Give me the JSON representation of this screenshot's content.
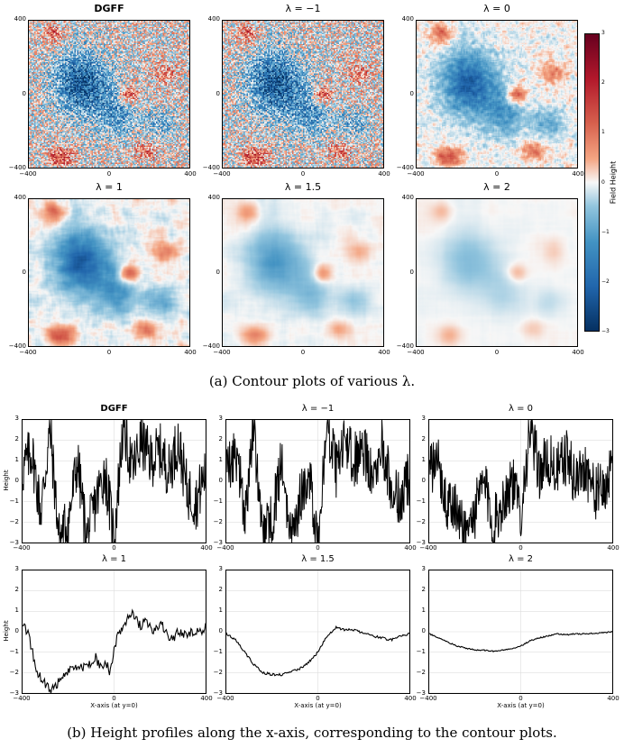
{
  "figure": {
    "caption_a": "(a) Contour plots of various λ.",
    "caption_b": "(b) Height profiles along the x-axis, corresponding to the contour plots.",
    "colorbar": {
      "label": "Field Height",
      "ticks": [
        "3",
        "2",
        "1",
        "0",
        "−1",
        "−2",
        "−3"
      ]
    },
    "panel_titles": [
      "DGFF",
      "λ = −1",
      "λ = 0",
      "λ = 1",
      "λ = 1.5",
      "λ = 2"
    ],
    "heatmap_ticks": {
      "y": [
        "400",
        "0",
        "−400"
      ],
      "x": [
        "−400",
        "0",
        "400"
      ]
    },
    "profile_ticks": {
      "y": [
        "3",
        "2",
        "1",
        "0",
        "−1",
        "−2",
        "−3"
      ],
      "x": [
        "−400",
        "0",
        "400"
      ]
    },
    "profile_ylabel": "Height",
    "profile_xlabel": "X-axis (at y=0)"
  },
  "chart_data": [
    {
      "type": "heatmap",
      "title": "DGFF",
      "xlim": [
        -400,
        400
      ],
      "ylim": [
        -400,
        400
      ],
      "colormap": "RdBu_r",
      "vmin": -3,
      "vmax": 3,
      "smoothing": 0
    },
    {
      "type": "heatmap",
      "title": "λ = −1",
      "xlim": [
        -400,
        400
      ],
      "ylim": [
        -400,
        400
      ],
      "colormap": "RdBu_r",
      "vmin": -3,
      "vmax": 3,
      "smoothing": 0
    },
    {
      "type": "heatmap",
      "title": "λ = 0",
      "xlim": [
        -400,
        400
      ],
      "ylim": [
        -400,
        400
      ],
      "colormap": "RdBu_r",
      "vmin": -3,
      "vmax": 3,
      "smoothing": 0.5
    },
    {
      "type": "heatmap",
      "title": "λ = 1",
      "xlim": [
        -400,
        400
      ],
      "ylim": [
        -400,
        400
      ],
      "colormap": "RdBu_r",
      "vmin": -3,
      "vmax": 3,
      "smoothing": 3
    },
    {
      "type": "heatmap",
      "title": "λ = 1.5",
      "xlim": [
        -400,
        400
      ],
      "ylim": [
        -400,
        400
      ],
      "colormap": "RdBu_r",
      "vmin": -3,
      "vmax": 3,
      "smoothing": 7,
      "amplitude": 0.55
    },
    {
      "type": "heatmap",
      "title": "λ = 2",
      "xlim": [
        -400,
        400
      ],
      "ylim": [
        -400,
        400
      ],
      "colormap": "RdBu_r",
      "vmin": -3,
      "vmax": 3,
      "smoothing": 12,
      "amplitude": 0.3
    },
    {
      "type": "line",
      "title": "DGFF",
      "ylabel": "Height",
      "xlim": [
        -400,
        400
      ],
      "ylim": [
        -3,
        3
      ],
      "grid": true,
      "x": [
        -400,
        -360,
        -320,
        -280,
        -240,
        -200,
        -160,
        -120,
        -80,
        -40,
        0,
        40,
        80,
        120,
        160,
        200,
        240,
        280,
        320,
        360,
        400
      ],
      "y": [
        0.5,
        1.5,
        -1.5,
        2.5,
        -2.8,
        -2,
        1,
        -2.8,
        -1,
        0.5,
        -2.8,
        2.8,
        0.5,
        2,
        1,
        1.5,
        0.5,
        2,
        -0.5,
        -1,
        0.5
      ]
    },
    {
      "type": "line",
      "title": "λ = −1",
      "xlim": [
        -400,
        400
      ],
      "ylim": [
        -3,
        3
      ],
      "grid": true,
      "x": [
        -400,
        -360,
        -320,
        -280,
        -240,
        -200,
        -160,
        -120,
        -80,
        -40,
        0,
        40,
        80,
        120,
        160,
        200,
        240,
        280,
        320,
        360,
        400
      ],
      "y": [
        0.3,
        1.5,
        -1.5,
        2.5,
        -2.8,
        -2,
        1,
        -2.8,
        -1,
        0.5,
        -2.8,
        2.8,
        0.5,
        2,
        1,
        1.5,
        0.5,
        2,
        -0.5,
        -1,
        0.3
      ]
    },
    {
      "type": "line",
      "title": "λ = 0",
      "xlim": [
        -400,
        400
      ],
      "ylim": [
        -3,
        3
      ],
      "grid": true,
      "x": [
        -400,
        -360,
        -320,
        -280,
        -240,
        -200,
        -160,
        -120,
        -80,
        -40,
        0,
        40,
        80,
        120,
        160,
        200,
        240,
        280,
        320,
        360,
        400
      ],
      "y": [
        0.5,
        0.8,
        -1.2,
        -1.5,
        -2.5,
        -1.5,
        0,
        -2.2,
        -1,
        0,
        -1.5,
        2.5,
        0.5,
        1,
        0.5,
        1.2,
        0,
        0.8,
        -0.5,
        -0.5,
        0.5
      ]
    },
    {
      "type": "line",
      "title": "λ = 1",
      "ylabel": "Height",
      "xlabel": "X-axis (at y=0)",
      "xlim": [
        -400,
        400
      ],
      "ylim": [
        -3,
        3
      ],
      "grid": true,
      "x": [
        -400,
        -380,
        -360,
        -340,
        -320,
        -300,
        -280,
        -260,
        -240,
        -220,
        -200,
        -180,
        -160,
        -140,
        -120,
        -100,
        -80,
        -60,
        -40,
        -20,
        0,
        20,
        40,
        60,
        80,
        100,
        120,
        140,
        160,
        180,
        200,
        220,
        240,
        260,
        280,
        300,
        320,
        340,
        360,
        380,
        400
      ],
      "y": [
        0.4,
        0,
        -0.8,
        -2,
        -2.2,
        -2.6,
        -2.9,
        -2.8,
        -2.3,
        -2.2,
        -1.9,
        -1.8,
        -1.7,
        -1.8,
        -1.6,
        -1.5,
        -1.3,
        -1.7,
        -1.5,
        -1.9,
        -1,
        0,
        0.3,
        0.7,
        1.0,
        0.5,
        0.3,
        0.6,
        0.1,
        0,
        0.3,
        0.2,
        -0.4,
        -0.3,
        0,
        -0.1,
        -0.2,
        0,
        0.1,
        -0.1,
        0.2
      ]
    },
    {
      "type": "line",
      "title": "λ = 1.5",
      "xlabel": "X-axis (at y=0)",
      "xlim": [
        -400,
        400
      ],
      "ylim": [
        -3,
        3
      ],
      "grid": true,
      "x": [
        -400,
        -360,
        -320,
        -280,
        -240,
        -200,
        -160,
        -120,
        -80,
        -40,
        0,
        40,
        80,
        120,
        160,
        200,
        240,
        280,
        320,
        360,
        400
      ],
      "y": [
        -0.1,
        -0.4,
        -1.0,
        -1.6,
        -2.0,
        -2.1,
        -2.1,
        -2.0,
        -1.8,
        -1.5,
        -1.0,
        -0.2,
        0.2,
        0.1,
        0.1,
        -0.1,
        -0.2,
        -0.3,
        -0.4,
        -0.2,
        -0.1
      ]
    },
    {
      "type": "line",
      "title": "λ = 2",
      "xlabel": "X-axis (at y=0)",
      "xlim": [
        -400,
        400
      ],
      "ylim": [
        -3,
        3
      ],
      "grid": true,
      "x": [
        -400,
        -360,
        -320,
        -280,
        -240,
        -200,
        -160,
        -120,
        -80,
        -40,
        0,
        40,
        80,
        120,
        160,
        200,
        240,
        280,
        320,
        360,
        400
      ],
      "y": [
        -0.1,
        -0.3,
        -0.5,
        -0.7,
        -0.8,
        -0.9,
        -0.9,
        -0.95,
        -0.9,
        -0.85,
        -0.7,
        -0.45,
        -0.3,
        -0.2,
        -0.1,
        -0.15,
        -0.1,
        -0.1,
        -0.08,
        -0.05,
        0
      ]
    }
  ]
}
